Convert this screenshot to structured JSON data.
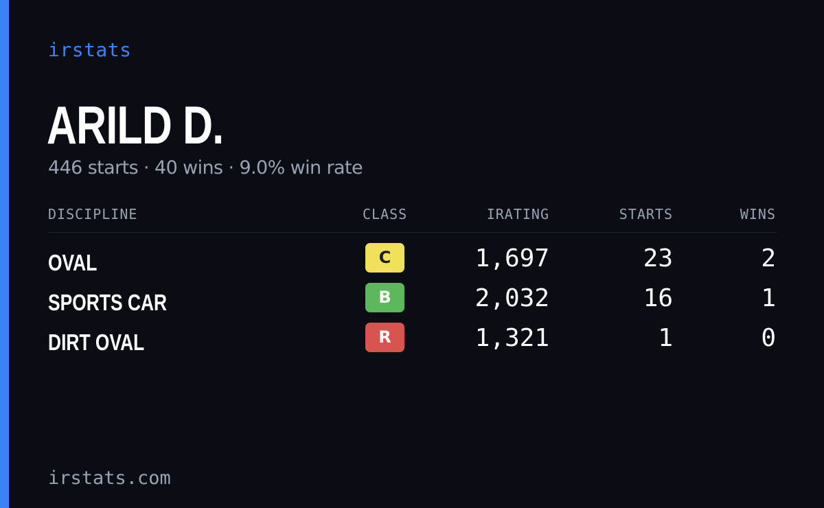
{
  "brand": "irstats",
  "player": {
    "name": "ARILD D.",
    "summary": "446 starts · 40 wins · 9.0% win rate"
  },
  "table": {
    "headers": {
      "discipline": "DISCIPLINE",
      "class": "CLASS",
      "irating": "IRATING",
      "starts": "STARTS",
      "wins": "WINS"
    },
    "rows": [
      {
        "discipline": "OVAL",
        "class": "C",
        "class_color": "#f1e05a",
        "class_text_color": "#1a1a1a",
        "irating": "1,697",
        "starts": "23",
        "wins": "2"
      },
      {
        "discipline": "SPORTS CAR",
        "class": "B",
        "class_color": "#5cb85c",
        "class_text_color": "#ffffff",
        "irating": "2,032",
        "starts": "16",
        "wins": "1"
      },
      {
        "discipline": "DIRT OVAL",
        "class": "R",
        "class_color": "#d9534f",
        "class_text_color": "#ffffff",
        "irating": "1,321",
        "starts": "1",
        "wins": "0"
      }
    ]
  },
  "footer": "irstats.com",
  "colors": {
    "accent": "#3b82f6",
    "background": "#0a0d14",
    "muted": "#9aa3b2"
  }
}
